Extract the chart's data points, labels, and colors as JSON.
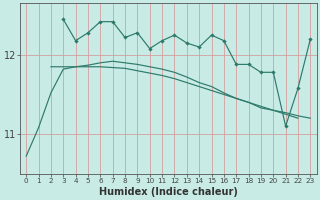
{
  "xlabel": "Humidex (Indice chaleur)",
  "x_values": [
    0,
    1,
    2,
    3,
    4,
    5,
    6,
    7,
    8,
    9,
    10,
    11,
    12,
    13,
    14,
    15,
    16,
    17,
    18,
    19,
    20,
    21,
    22,
    23
  ],
  "series1": [
    null,
    null,
    null,
    12.45,
    12.18,
    12.28,
    12.42,
    12.42,
    12.22,
    12.28,
    12.08,
    12.18,
    12.25,
    12.15,
    12.1,
    12.25,
    12.18,
    11.88,
    11.88,
    11.78,
    11.78,
    11.1,
    11.58,
    12.2
  ],
  "series2": [
    10.72,
    11.08,
    11.52,
    11.82,
    11.85,
    11.87,
    11.9,
    11.92,
    11.9,
    11.88,
    11.85,
    11.82,
    11.78,
    11.72,
    11.65,
    11.6,
    11.52,
    11.45,
    11.4,
    11.33,
    11.3,
    11.27,
    11.23,
    11.2
  ],
  "series3": [
    null,
    null,
    11.85,
    11.85,
    11.85,
    11.85,
    11.85,
    11.84,
    11.83,
    11.8,
    11.77,
    11.74,
    11.7,
    11.65,
    11.6,
    11.55,
    11.5,
    11.45,
    11.4,
    11.35,
    11.3,
    11.25,
    11.2,
    null
  ],
  "has_markers1": true,
  "line_color": "#2d7a6b",
  "bg_color": "#c8ebe5",
  "grid_color_v": "#d4a0a0",
  "grid_color_h": "#d4a0a0",
  "ylim": [
    10.5,
    12.65
  ],
  "yticks": [
    11,
    12
  ],
  "xlim": [
    -0.5,
    23.5
  ]
}
